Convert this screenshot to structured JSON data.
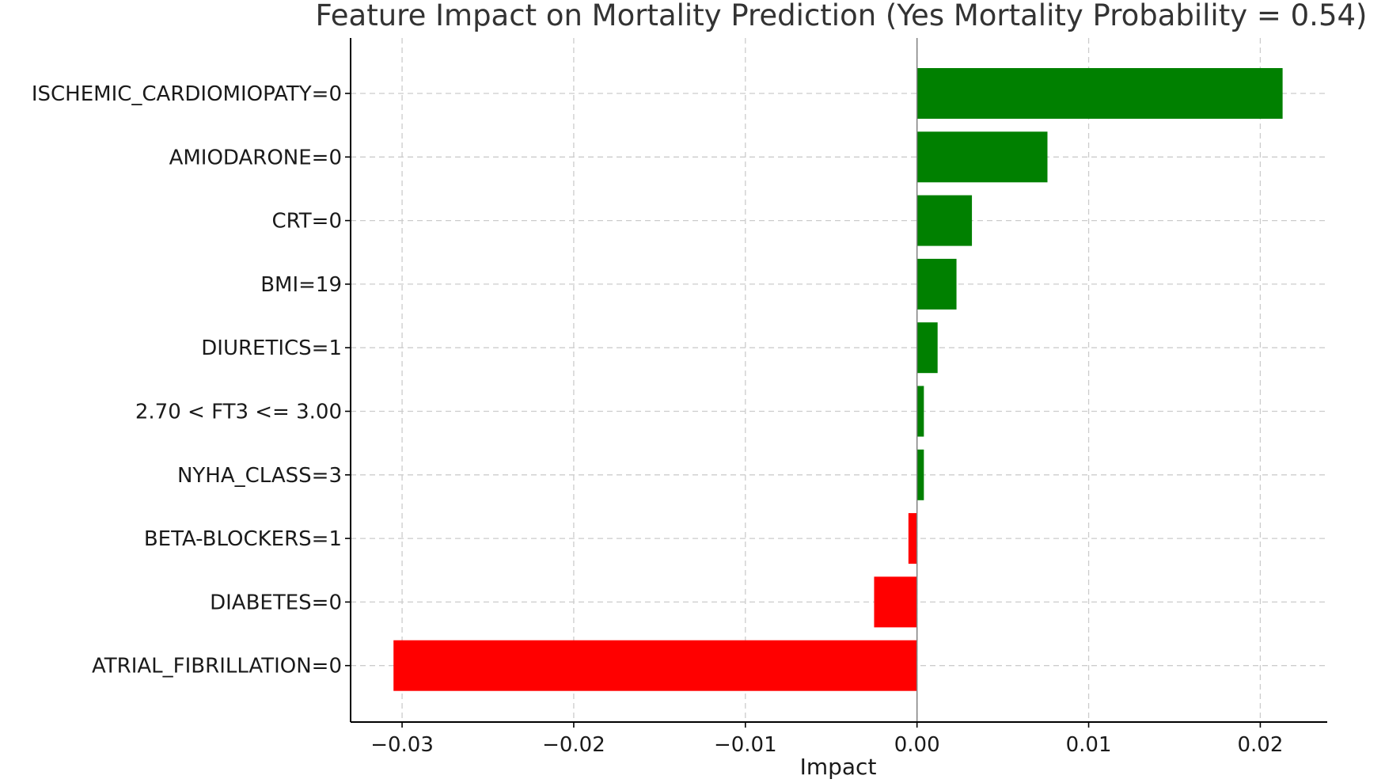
{
  "chart_data": {
    "type": "bar",
    "orientation": "horizontal",
    "title": "Feature Impact on Mortality Prediction (Yes Mortality Probability = 0.54)",
    "xlabel": "Impact",
    "ylabel": "",
    "categories": [
      "ISCHEMIC_CARDIOMIOPATY=0",
      "AMIODARONE=0",
      "CRT=0",
      "BMI=19",
      "DIURETICS=1",
      "2.70 < FT3 <= 3.00",
      "NYHA_CLASS=3",
      "BETA-BLOCKERS=1",
      "DIABETES=0",
      "ATRIAL_FIBRILLATION=0"
    ],
    "values": [
      0.0213,
      0.0076,
      0.0032,
      0.0023,
      0.0012,
      0.0004,
      0.0004,
      -0.0005,
      -0.0025,
      -0.0305
    ],
    "xlim": [
      -0.033,
      0.0239
    ],
    "xticks": [
      -0.03,
      -0.02,
      -0.01,
      0.0,
      0.01,
      0.02
    ],
    "xtick_labels": [
      "−0.03",
      "−0.02",
      "−0.01",
      "0.00",
      "0.01",
      "0.02"
    ],
    "grid": true,
    "colors": {
      "positive": "#008000",
      "negative": "#ff0000",
      "zero_line": "#808080"
    }
  }
}
